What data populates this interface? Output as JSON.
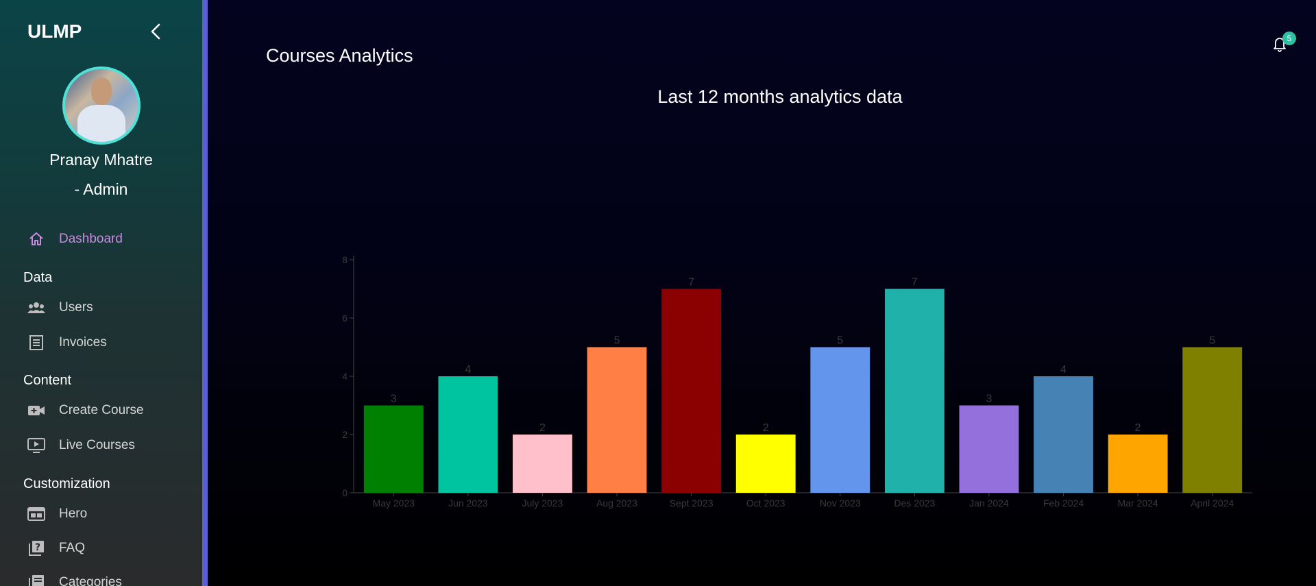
{
  "sidebar": {
    "brand": "ULMP",
    "user_name": "Pranay Mhatre",
    "user_role": "- Admin",
    "dashboard_label": "Dashboard",
    "sections": {
      "data": "Data",
      "content": "Content",
      "customization": "Customization"
    },
    "items": {
      "users": "Users",
      "invoices": "Invoices",
      "create_course": "Create Course",
      "live_courses": "Live Courses",
      "hero": "Hero",
      "faq": "FAQ",
      "categories": "Categories"
    },
    "icons": {
      "collapse": "chevron-left-icon",
      "dashboard": "home-icon",
      "users": "users-group-icon",
      "invoices": "receipt-icon",
      "create_course": "video-add-icon",
      "live_courses": "play-screen-icon",
      "hero": "web-layout-icon",
      "faq": "quiz-icon",
      "categories": "list-icon"
    }
  },
  "header": {
    "page_title": "Courses Analytics",
    "notification_count": "5"
  },
  "colors": {
    "sidebar_accent": "#5a5fd6",
    "avatar_border": "#4fe0d6",
    "active_nav": "#c88be0",
    "badge": "#2fc0a2"
  },
  "chart_data": {
    "type": "bar",
    "title": "Last 12 months analytics data",
    "categories": [
      "May 2023",
      "Jun 2023",
      "July 2023",
      "Aug 2023",
      "Sept 2023",
      "Oct 2023",
      "Nov 2023",
      "Des 2023",
      "Jan 2024",
      "Feb 2024",
      "Mar 2024",
      "April 2024"
    ],
    "values": [
      3,
      4,
      2,
      5,
      7,
      2,
      5,
      7,
      3,
      4,
      2,
      5
    ],
    "colors": [
      "#008000",
      "#00c4a0",
      "#ffc0cb",
      "#ff7f45",
      "#8b0000",
      "#ffff00",
      "#6495ed",
      "#20b2aa",
      "#9370db",
      "#4682b4",
      "#ffa500",
      "#808000"
    ],
    "yticks": [
      0,
      2,
      4,
      6,
      8
    ],
    "ylim": [
      0,
      8
    ],
    "grid": false,
    "data_labels": true
  }
}
